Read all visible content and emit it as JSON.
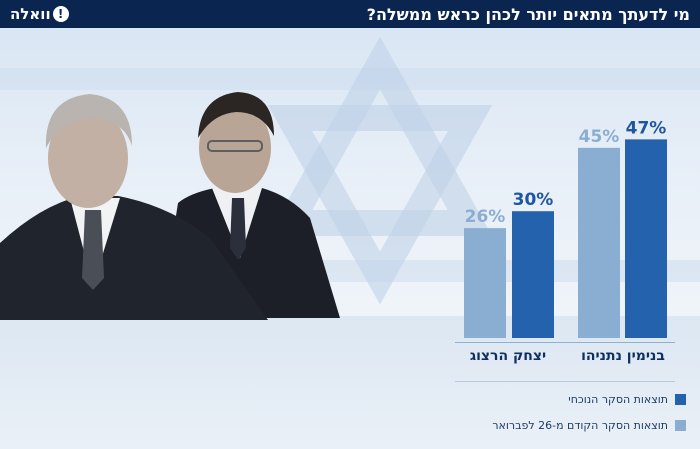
{
  "header": {
    "title": "מי לדעתך מתאים יותר לכהן כראש ממשלה?",
    "logo_text": "וואלה",
    "logo_mark": "!"
  },
  "colors": {
    "current": "#2462ad",
    "previous": "#8aaed2",
    "header_bg": "#0a2550"
  },
  "chart_data": {
    "type": "bar",
    "categories": [
      "בנימין נתניהו",
      "יצחק הרצוג"
    ],
    "series": [
      {
        "name": "תוצאות הסקר הנוכחי",
        "values": [
          47,
          30
        ]
      },
      {
        "name": "תוצאות הסקר הקודם מ-26 לפברואר",
        "values": [
          45,
          26
        ]
      }
    ],
    "value_labels": {
      "current": [
        "47%",
        "30%"
      ],
      "previous": [
        "45%",
        "26%"
      ]
    },
    "ylim": [
      0,
      50
    ],
    "grid": false,
    "legend_position": "bottom-right",
    "title": "מי לדעתך מתאים יותר לכהן כראש ממשלה?"
  },
  "legend": [
    {
      "label": "תוצאות הסקר הנוכחי",
      "color": "#2462ad"
    },
    {
      "label": "תוצאות הסקר הקודם מ-26 לפברואר",
      "color": "#8aaed2"
    }
  ],
  "images": {
    "left_person": "person-photo-icon",
    "right_person": "person-photo-icon",
    "background": "israel-flag-icon"
  }
}
